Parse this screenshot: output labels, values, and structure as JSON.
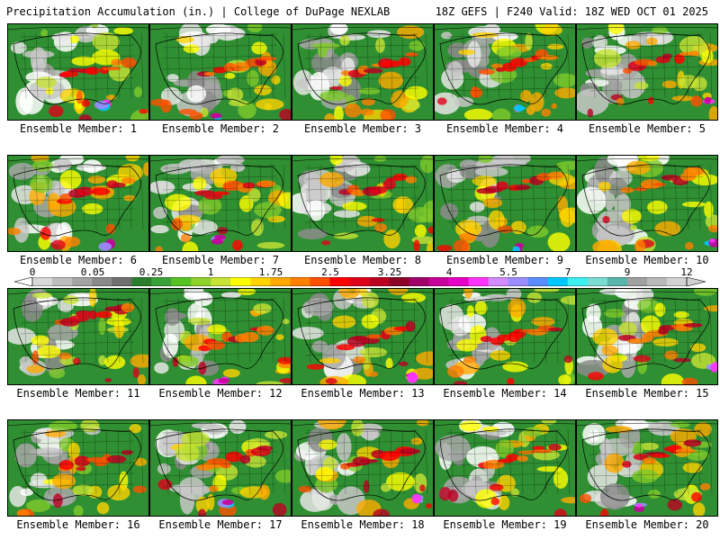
{
  "header": {
    "title_left": "Precipitation Accumulation (in.) | College of DuPage NEXLAB",
    "title_right": "18Z GEFS | F240 Valid: 18Z WED OCT 01 2025"
  },
  "legend": {
    "ticks": [
      "0",
      "0.05",
      "0.25",
      "1",
      "1.75",
      "2.5",
      "3.25",
      "4",
      "5.5",
      "7",
      "9",
      "12"
    ],
    "colors": [
      "#d8d8d8",
      "#bdbdbd",
      "#a3a3a3",
      "#8a8a8a",
      "#6f6f6f",
      "#2a7d2a",
      "#3aa23a",
      "#55c225",
      "#8fd12a",
      "#c8e335",
      "#ffff00",
      "#ffd200",
      "#ffaa00",
      "#ff7f00",
      "#ff5000",
      "#ff0000",
      "#e0001a",
      "#bb0022",
      "#8b0026",
      "#a0006a",
      "#c8009b",
      "#e600c8",
      "#ff33ff",
      "#d28cff",
      "#9b8cff",
      "#5a8cff",
      "#00c8ff",
      "#3cf0f0",
      "#7adcd2",
      "#5ab4aa",
      "#a0a0a0",
      "#b9b9b9",
      "#d2d2d2"
    ]
  },
  "members": [
    {
      "label": "Ensemble Member: 1"
    },
    {
      "label": "Ensemble Member: 2"
    },
    {
      "label": "Ensemble Member: 3"
    },
    {
      "label": "Ensemble Member: 4"
    },
    {
      "label": "Ensemble Member: 5"
    },
    {
      "label": "Ensemble Member: 6"
    },
    {
      "label": "Ensemble Member: 7"
    },
    {
      "label": "Ensemble Member: 8"
    },
    {
      "label": "Ensemble Member: 9"
    },
    {
      "label": "Ensemble Member: 10"
    },
    {
      "label": "Ensemble Member: 11"
    },
    {
      "label": "Ensemble Member: 12"
    },
    {
      "label": "Ensemble Member: 13"
    },
    {
      "label": "Ensemble Member: 14"
    },
    {
      "label": "Ensemble Member: 15"
    },
    {
      "label": "Ensemble Member: 16"
    },
    {
      "label": "Ensemble Member: 17"
    },
    {
      "label": "Ensemble Member: 18"
    },
    {
      "label": "Ensemble Member: 19"
    },
    {
      "label": "Ensemble Member: 20"
    }
  ]
}
